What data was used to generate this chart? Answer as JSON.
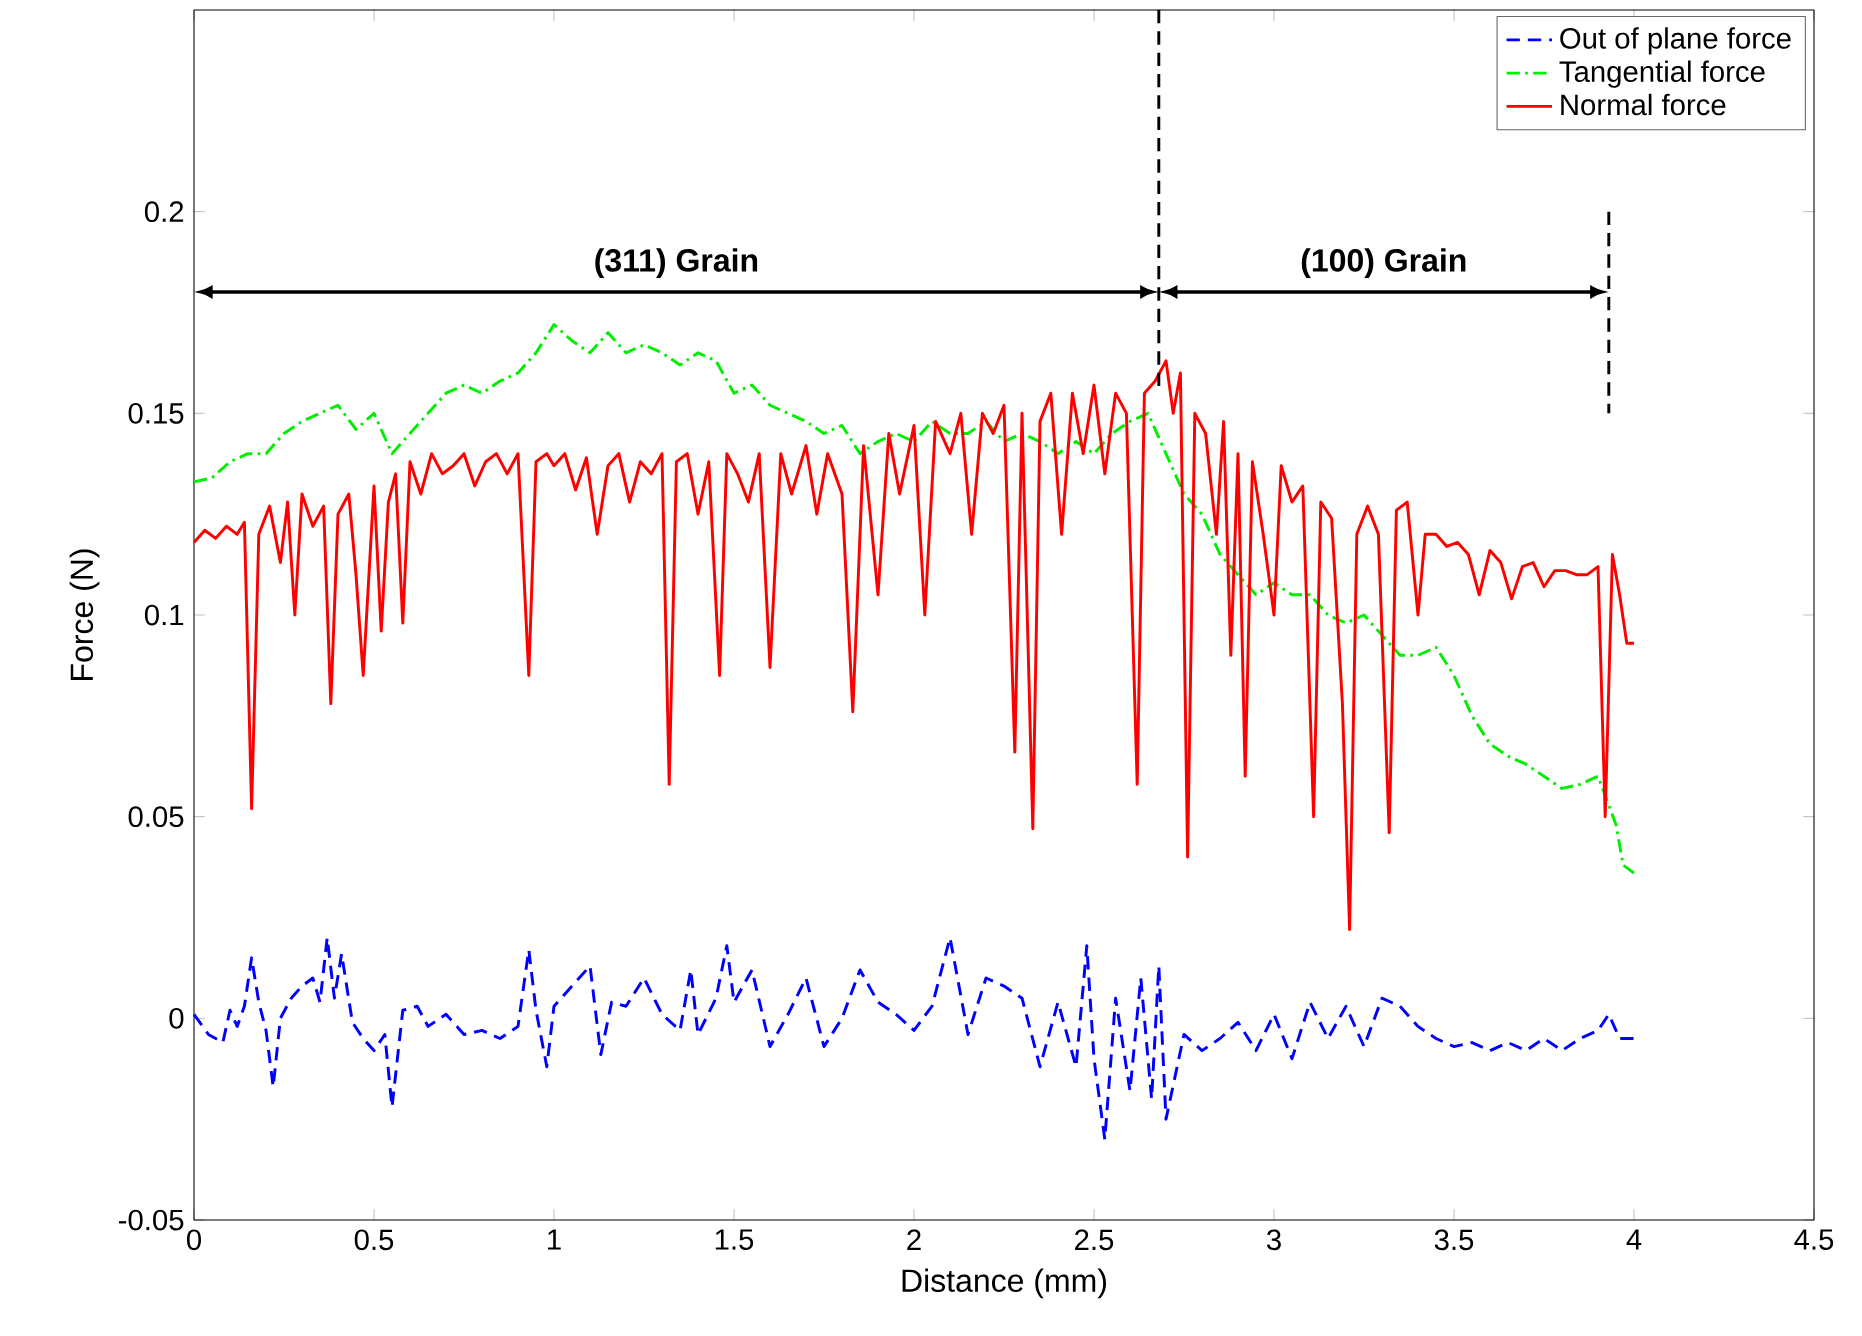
{
  "chart_data": {
    "type": "line",
    "xlabel": "Distance (mm)",
    "ylabel": "Force (N)",
    "xlim": [
      0,
      4.5
    ],
    "ylim": [
      -0.05,
      0.25
    ],
    "xticks": [
      0,
      0.5,
      1,
      1.5,
      2,
      2.5,
      3,
      3.5,
      4,
      4.5
    ],
    "yticks": [
      -0.05,
      0,
      0.05,
      0.1,
      0.15,
      0.2
    ],
    "grid": false,
    "legend": "top right",
    "marker": "none",
    "series": [
      {
        "name": "Out of plane force",
        "color": "#0000ff",
        "line_style": "dashed",
        "x": [
          0,
          0.04,
          0.08,
          0.1,
          0.12,
          0.14,
          0.16,
          0.18,
          0.2,
          0.22,
          0.24,
          0.27,
          0.3,
          0.33,
          0.35,
          0.37,
          0.39,
          0.41,
          0.44,
          0.47,
          0.5,
          0.53,
          0.55,
          0.58,
          0.62,
          0.65,
          0.7,
          0.75,
          0.8,
          0.85,
          0.9,
          0.93,
          0.95,
          0.98,
          1.0,
          1.05,
          1.1,
          1.13,
          1.16,
          1.2,
          1.25,
          1.3,
          1.35,
          1.38,
          1.4,
          1.45,
          1.48,
          1.5,
          1.55,
          1.6,
          1.65,
          1.7,
          1.75,
          1.8,
          1.85,
          1.9,
          1.95,
          2.0,
          2.05,
          2.1,
          2.15,
          2.2,
          2.25,
          2.3,
          2.35,
          2.4,
          2.45,
          2.48,
          2.5,
          2.53,
          2.56,
          2.6,
          2.63,
          2.66,
          2.68,
          2.7,
          2.75,
          2.8,
          2.85,
          2.9,
          2.95,
          3.0,
          3.05,
          3.1,
          3.15,
          3.2,
          3.25,
          3.3,
          3.35,
          3.4,
          3.45,
          3.5,
          3.55,
          3.6,
          3.65,
          3.7,
          3.75,
          3.8,
          3.85,
          3.9,
          3.93,
          3.96,
          4.0
        ],
        "values": [
          0.001,
          -0.004,
          -0.006,
          0.002,
          -0.002,
          0.003,
          0.015,
          0.004,
          -0.003,
          -0.017,
          0,
          0.005,
          0.008,
          0.01,
          0.004,
          0.02,
          0.005,
          0.016,
          -0.001,
          -0.005,
          -0.008,
          -0.004,
          -0.022,
          0.002,
          0.003,
          -0.002,
          0.001,
          -0.004,
          -0.003,
          -0.005,
          -0.002,
          0.017,
          0.002,
          -0.012,
          0.003,
          0.008,
          0.013,
          -0.009,
          0.004,
          0.003,
          0.01,
          0.001,
          -0.003,
          0.012,
          -0.004,
          0.005,
          0.018,
          0.004,
          0.012,
          -0.007,
          0.001,
          0.01,
          -0.007,
          0,
          0.012,
          0.004,
          0.001,
          -0.003,
          0.003,
          0.02,
          -0.004,
          0.01,
          0.008,
          0.005,
          -0.012,
          0.004,
          -0.012,
          0.018,
          -0.01,
          -0.03,
          0.005,
          -0.018,
          0.01,
          -0.02,
          0.013,
          -0.025,
          -0.004,
          -0.008,
          -0.005,
          -0.001,
          -0.008,
          0.001,
          -0.01,
          0.004,
          -0.005,
          0.003,
          -0.007,
          0.005,
          0.003,
          -0.002,
          -0.005,
          -0.007,
          -0.006,
          -0.008,
          -0.006,
          -0.008,
          -0.005,
          -0.008,
          -0.005,
          -0.003,
          0.001,
          -0.005,
          -0.005
        ]
      },
      {
        "name": "Tangential force",
        "color": "#00ee00",
        "line_style": "dashdot",
        "x": [
          0,
          0.05,
          0.1,
          0.15,
          0.2,
          0.25,
          0.3,
          0.35,
          0.4,
          0.45,
          0.5,
          0.55,
          0.6,
          0.65,
          0.7,
          0.75,
          0.8,
          0.85,
          0.9,
          0.95,
          1.0,
          1.05,
          1.1,
          1.15,
          1.2,
          1.25,
          1.3,
          1.35,
          1.4,
          1.45,
          1.5,
          1.55,
          1.6,
          1.65,
          1.7,
          1.75,
          1.8,
          1.85,
          1.9,
          1.95,
          2.0,
          2.05,
          2.1,
          2.15,
          2.2,
          2.25,
          2.3,
          2.35,
          2.4,
          2.45,
          2.5,
          2.55,
          2.6,
          2.65,
          2.7,
          2.75,
          2.8,
          2.85,
          2.9,
          2.95,
          3.0,
          3.05,
          3.1,
          3.15,
          3.2,
          3.25,
          3.3,
          3.35,
          3.4,
          3.45,
          3.5,
          3.55,
          3.6,
          3.65,
          3.7,
          3.75,
          3.8,
          3.85,
          3.9,
          3.95,
          3.97,
          4.0
        ],
        "values": [
          0.133,
          0.134,
          0.138,
          0.14,
          0.14,
          0.145,
          0.148,
          0.15,
          0.152,
          0.146,
          0.15,
          0.14,
          0.145,
          0.15,
          0.155,
          0.157,
          0.155,
          0.158,
          0.16,
          0.165,
          0.172,
          0.168,
          0.165,
          0.17,
          0.165,
          0.167,
          0.165,
          0.162,
          0.165,
          0.163,
          0.155,
          0.157,
          0.152,
          0.15,
          0.148,
          0.145,
          0.147,
          0.14,
          0.143,
          0.145,
          0.143,
          0.148,
          0.145,
          0.145,
          0.148,
          0.143,
          0.145,
          0.143,
          0.14,
          0.143,
          0.14,
          0.145,
          0.148,
          0.15,
          0.14,
          0.13,
          0.125,
          0.115,
          0.11,
          0.105,
          0.108,
          0.105,
          0.105,
          0.1,
          0.098,
          0.1,
          0.095,
          0.09,
          0.09,
          0.092,
          0.085,
          0.075,
          0.068,
          0.065,
          0.063,
          0.06,
          0.057,
          0.058,
          0.06,
          0.048,
          0.038,
          0.036
        ]
      },
      {
        "name": "Normal force",
        "color": "#ff0000",
        "line_style": "solid",
        "x": [
          0,
          0.03,
          0.06,
          0.09,
          0.12,
          0.14,
          0.16,
          0.18,
          0.21,
          0.24,
          0.26,
          0.28,
          0.3,
          0.33,
          0.36,
          0.38,
          0.4,
          0.43,
          0.45,
          0.47,
          0.5,
          0.52,
          0.54,
          0.56,
          0.58,
          0.6,
          0.63,
          0.66,
          0.69,
          0.72,
          0.75,
          0.78,
          0.81,
          0.84,
          0.87,
          0.9,
          0.93,
          0.95,
          0.98,
          1.0,
          1.03,
          1.06,
          1.09,
          1.12,
          1.15,
          1.18,
          1.21,
          1.24,
          1.27,
          1.3,
          1.32,
          1.34,
          1.37,
          1.4,
          1.43,
          1.46,
          1.48,
          1.51,
          1.54,
          1.57,
          1.6,
          1.63,
          1.66,
          1.7,
          1.73,
          1.76,
          1.8,
          1.83,
          1.86,
          1.9,
          1.93,
          1.96,
          2.0,
          2.03,
          2.06,
          2.1,
          2.13,
          2.16,
          2.19,
          2.22,
          2.25,
          2.28,
          2.3,
          2.33,
          2.35,
          2.38,
          2.41,
          2.44,
          2.47,
          2.5,
          2.53,
          2.56,
          2.59,
          2.62,
          2.64,
          2.67,
          2.7,
          2.72,
          2.74,
          2.76,
          2.78,
          2.81,
          2.84,
          2.86,
          2.88,
          2.9,
          2.92,
          2.94,
          2.97,
          3.0,
          3.02,
          3.05,
          3.08,
          3.11,
          3.13,
          3.16,
          3.19,
          3.21,
          3.23,
          3.26,
          3.29,
          3.32,
          3.34,
          3.37,
          3.4,
          3.42,
          3.45,
          3.48,
          3.51,
          3.54,
          3.57,
          3.6,
          3.63,
          3.66,
          3.69,
          3.72,
          3.75,
          3.78,
          3.81,
          3.84,
          3.87,
          3.9,
          3.92,
          3.94,
          3.96,
          3.98,
          4.0
        ],
        "values": [
          0.118,
          0.121,
          0.119,
          0.122,
          0.12,
          0.123,
          0.052,
          0.12,
          0.127,
          0.113,
          0.128,
          0.1,
          0.13,
          0.122,
          0.127,
          0.078,
          0.125,
          0.13,
          0.11,
          0.085,
          0.132,
          0.096,
          0.128,
          0.135,
          0.098,
          0.138,
          0.13,
          0.14,
          0.135,
          0.137,
          0.14,
          0.132,
          0.138,
          0.14,
          0.135,
          0.14,
          0.085,
          0.138,
          0.14,
          0.137,
          0.14,
          0.131,
          0.139,
          0.12,
          0.137,
          0.14,
          0.128,
          0.138,
          0.135,
          0.14,
          0.058,
          0.138,
          0.14,
          0.125,
          0.138,
          0.085,
          0.14,
          0.135,
          0.128,
          0.14,
          0.087,
          0.14,
          0.13,
          0.142,
          0.125,
          0.14,
          0.13,
          0.076,
          0.142,
          0.105,
          0.145,
          0.13,
          0.147,
          0.1,
          0.148,
          0.14,
          0.15,
          0.12,
          0.15,
          0.145,
          0.152,
          0.066,
          0.15,
          0.047,
          0.148,
          0.155,
          0.12,
          0.155,
          0.14,
          0.157,
          0.135,
          0.155,
          0.15,
          0.058,
          0.155,
          0.158,
          0.163,
          0.15,
          0.16,
          0.04,
          0.15,
          0.145,
          0.12,
          0.148,
          0.09,
          0.14,
          0.06,
          0.138,
          0.12,
          0.1,
          0.137,
          0.128,
          0.132,
          0.05,
          0.128,
          0.124,
          0.078,
          0.022,
          0.12,
          0.127,
          0.12,
          0.046,
          0.126,
          0.128,
          0.1,
          0.12,
          0.12,
          0.117,
          0.118,
          0.115,
          0.105,
          0.116,
          0.113,
          0.104,
          0.112,
          0.113,
          0.107,
          0.111,
          0.111,
          0.11,
          0.11,
          0.112,
          0.05,
          0.115,
          0.105,
          0.093,
          0.093
        ]
      },
      {
        "color": "#000000",
        "line_style": "dashed",
        "x": [
          2.68,
          2.68
        ],
        "values": [
          0.25,
          0.155
        ]
      },
      {
        "color": "#000000",
        "line_style": "dashed",
        "x": [
          3.93,
          3.93
        ],
        "values": [
          0.2,
          0.15
        ]
      }
    ],
    "annotations": [
      "(311) Grain",
      "(100) Grain"
    ]
  }
}
